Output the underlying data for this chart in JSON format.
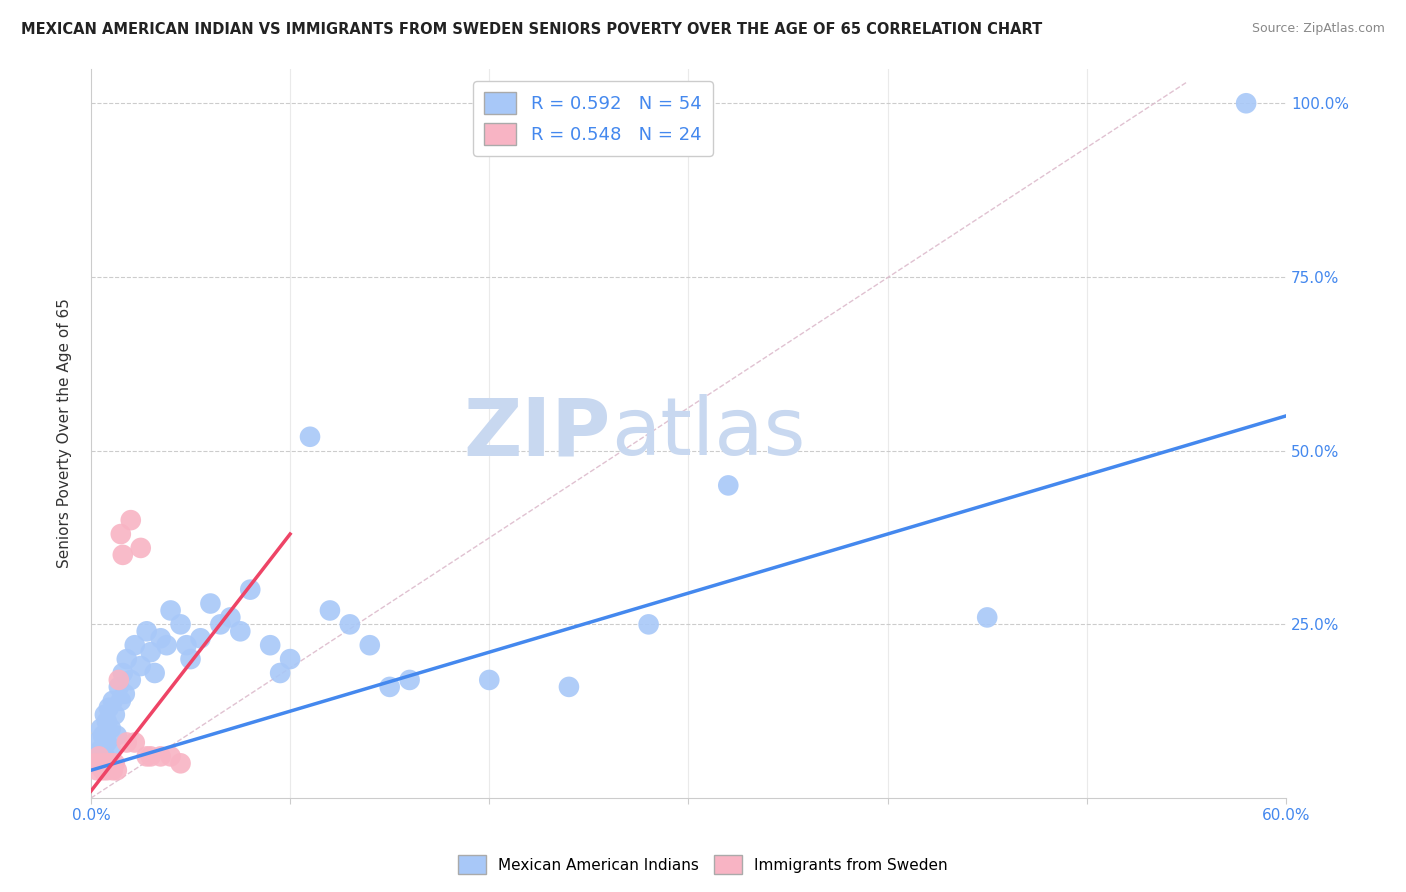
{
  "title": "MEXICAN AMERICAN INDIAN VS IMMIGRANTS FROM SWEDEN SENIORS POVERTY OVER THE AGE OF 65 CORRELATION CHART",
  "source": "Source: ZipAtlas.com",
  "ylabel": "Seniors Poverty Over the Age of 65",
  "xlim": [
    0.0,
    0.6
  ],
  "ylim": [
    0.0,
    1.05
  ],
  "xticks": [
    0.0,
    0.1,
    0.2,
    0.3,
    0.4,
    0.5,
    0.6
  ],
  "xticklabels": [
    "0.0%",
    "",
    "",
    "",
    "",
    "",
    "60.0%"
  ],
  "ytick_positions": [
    0.0,
    0.25,
    0.5,
    0.75,
    1.0
  ],
  "ytick_right_labels": [
    "",
    "25.0%",
    "50.0%",
    "75.0%",
    "100.0%"
  ],
  "R_blue": 0.592,
  "N_blue": 54,
  "R_pink": 0.548,
  "N_pink": 24,
  "blue_color": "#a8c8f8",
  "pink_color": "#f8b4c4",
  "blue_line_color": "#4488ee",
  "pink_line_color": "#ee4466",
  "grid_color": "#cccccc",
  "watermark_zip": "ZIP",
  "watermark_atlas": "atlas",
  "watermark_color_zip": "#c8d8f0",
  "watermark_color_atlas": "#c8d8f0",
  "title_color": "#222222",
  "source_color": "#888888",
  "label_color": "#4488ee",
  "blue_scatter_x": [
    0.002,
    0.003,
    0.004,
    0.005,
    0.005,
    0.006,
    0.007,
    0.007,
    0.008,
    0.008,
    0.009,
    0.01,
    0.01,
    0.011,
    0.012,
    0.013,
    0.014,
    0.015,
    0.016,
    0.017,
    0.018,
    0.02,
    0.022,
    0.025,
    0.028,
    0.03,
    0.032,
    0.035,
    0.038,
    0.04,
    0.045,
    0.048,
    0.05,
    0.055,
    0.06,
    0.065,
    0.07,
    0.075,
    0.08,
    0.09,
    0.095,
    0.1,
    0.11,
    0.12,
    0.13,
    0.14,
    0.15,
    0.16,
    0.2,
    0.24,
    0.28,
    0.32,
    0.45,
    0.58
  ],
  "blue_scatter_y": [
    0.05,
    0.08,
    0.06,
    0.1,
    0.07,
    0.09,
    0.12,
    0.06,
    0.11,
    0.08,
    0.13,
    0.1,
    0.07,
    0.14,
    0.12,
    0.09,
    0.16,
    0.14,
    0.18,
    0.15,
    0.2,
    0.17,
    0.22,
    0.19,
    0.24,
    0.21,
    0.18,
    0.23,
    0.22,
    0.27,
    0.25,
    0.22,
    0.2,
    0.23,
    0.28,
    0.25,
    0.26,
    0.24,
    0.3,
    0.22,
    0.18,
    0.2,
    0.52,
    0.27,
    0.25,
    0.22,
    0.16,
    0.17,
    0.17,
    0.16,
    0.25,
    0.45,
    0.26,
    1.0
  ],
  "pink_scatter_x": [
    0.002,
    0.003,
    0.004,
    0.005,
    0.006,
    0.007,
    0.008,
    0.009,
    0.01,
    0.011,
    0.012,
    0.013,
    0.014,
    0.015,
    0.016,
    0.018,
    0.02,
    0.022,
    0.025,
    0.028,
    0.03,
    0.035,
    0.04,
    0.045
  ],
  "pink_scatter_y": [
    0.05,
    0.04,
    0.06,
    0.05,
    0.04,
    0.05,
    0.04,
    0.05,
    0.05,
    0.04,
    0.05,
    0.04,
    0.17,
    0.38,
    0.35,
    0.08,
    0.4,
    0.08,
    0.36,
    0.06,
    0.06,
    0.06,
    0.06,
    0.05
  ],
  "blue_trend_x0": 0.0,
  "blue_trend_y0": 0.04,
  "blue_trend_x1": 0.6,
  "blue_trend_y1": 0.55,
  "pink_trend_x0": 0.0,
  "pink_trend_y0": 0.01,
  "pink_trend_x1": 0.1,
  "pink_trend_y1": 0.38,
  "ref_line_x0": 0.0,
  "ref_line_y0": 0.0,
  "ref_line_x1": 0.55,
  "ref_line_y1": 1.03
}
